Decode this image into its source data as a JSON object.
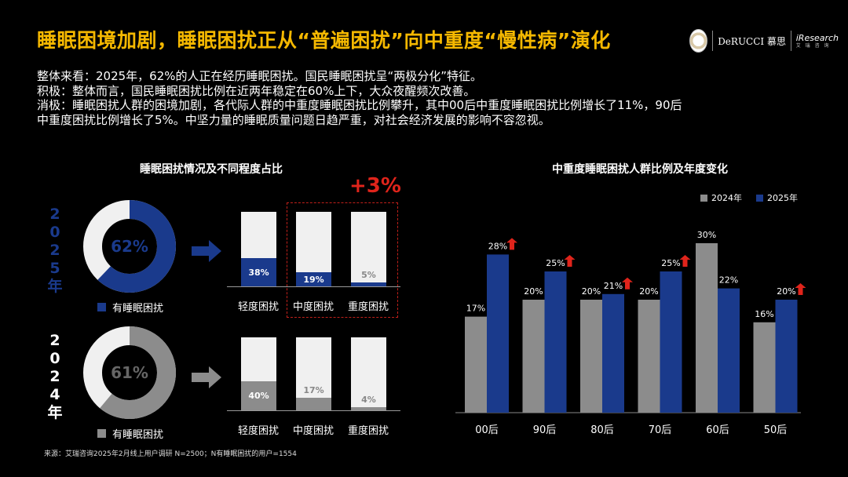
{
  "title": "睡眠困境加剧，睡眠困扰正从“普遍困扰”向中重度“慢性病”演化",
  "logos": {
    "derucci": "DeRUCCI 慕思",
    "iresearch_en": "iResearch",
    "iresearch_cn": "艾 瑞 咨 询"
  },
  "summary": [
    "整体来看：2025年，62%的人正在经历睡眠困扰。国民睡眠困扰呈“两极分化”特征。",
    "积极：整体而言，国民睡眠困扰比例在近两年稳定在60%上下，大众夜醒频次改善。",
    "消极：睡眠困扰人群的困境加剧，各代际人群的中重度睡眠困扰比例攀升，其中00后中重度睡眠困扰比例增长了11%，90后",
    "中重度困扰比例增长了5%。中坚力量的睡眠质量问题日趋严重，对社会经济发展的影响不容忽视。"
  ],
  "left_panel": {
    "title": "睡眠困扰情况及不同程度占比",
    "highlight": "+3%",
    "rows": [
      {
        "year_chars": [
          "2",
          "0",
          "2",
          "5",
          "年"
        ],
        "donut_label": "62%",
        "legend": "有睡眠困扰"
      },
      {
        "year_chars": [
          "2",
          "0",
          "2",
          "4",
          "年"
        ],
        "donut_label": "61%",
        "legend": "有睡眠困扰"
      }
    ]
  },
  "right_panel": {
    "title": "中重度睡眠困扰人群比例及年度变化"
  },
  "colors": {
    "accent": "#f5b800",
    "blue": "#1a3a8c",
    "gray": "#8c8c8c",
    "light": "#f0f0f0",
    "up_arrow": "#e0241b"
  },
  "chart_data": [
    {
      "type": "pie",
      "title": "",
      "categories": [
        "有睡眠困扰",
        "无"
      ],
      "series": [
        {
          "name": "2025年",
          "values": [
            62,
            38
          ]
        },
        {
          "name": "2024年",
          "values": [
            61,
            39
          ]
        }
      ]
    },
    {
      "type": "bar",
      "title": "睡眠困扰情况及不同程度占比",
      "categories": [
        "轻度困扰",
        "中度困扰",
        "重度困扰"
      ],
      "series": [
        {
          "name": "2025年",
          "values": [
            38,
            19,
            5
          ]
        },
        {
          "name": "2024年",
          "values": [
            40,
            17,
            4
          ]
        }
      ],
      "ylim": [
        0,
        100
      ],
      "annotations": [
        "+3%"
      ]
    },
    {
      "type": "bar",
      "title": "中重度睡眠困扰人群比例及年度变化",
      "categories": [
        "00后",
        "90后",
        "80后",
        "70后",
        "60后",
        "50后"
      ],
      "series": [
        {
          "name": "2024年",
          "values": [
            17,
            20,
            20,
            20,
            30,
            16
          ]
        },
        {
          "name": "2025年",
          "values": [
            28,
            25,
            21,
            25,
            22,
            20
          ]
        }
      ],
      "increase_marked": [
        true,
        true,
        true,
        true,
        false,
        true
      ],
      "ylim": [
        0,
        35
      ],
      "legend": "top-right"
    }
  ],
  "footnote": "来源：艾瑞咨询2025年2月线上用户调研 N=2500；N有睡眠困扰的用户=1554"
}
